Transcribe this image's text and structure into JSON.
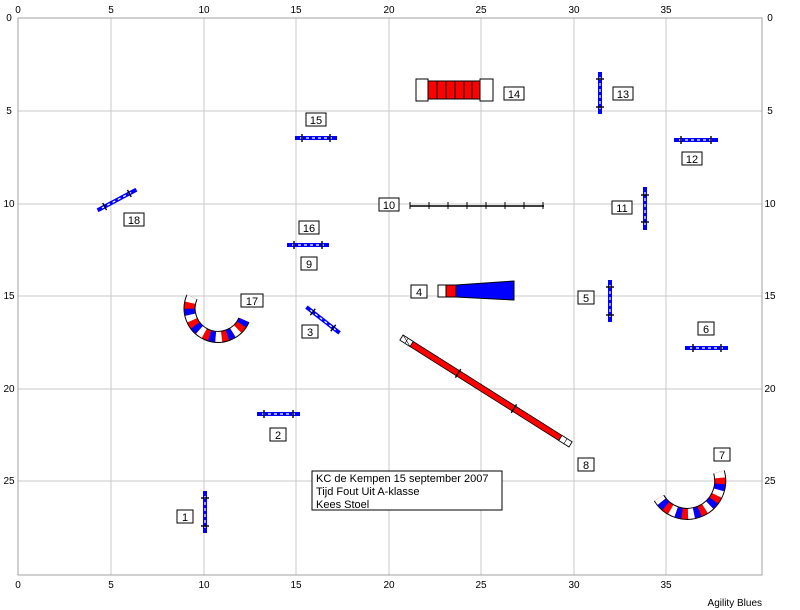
{
  "axis": {
    "x_ticks": [
      "0",
      "5",
      "10",
      "15",
      "20",
      "25",
      "30",
      "35"
    ],
    "y_ticks": [
      "0",
      "5",
      "10",
      "15",
      "20",
      "25"
    ]
  },
  "obstacles": [
    {
      "number": "1",
      "type": "jump"
    },
    {
      "number": "2",
      "type": "jump"
    },
    {
      "number": "3",
      "type": "jump"
    },
    {
      "number": "4",
      "type": "chute-tunnel"
    },
    {
      "number": "5",
      "type": "jump"
    },
    {
      "number": "6",
      "type": "jump"
    },
    {
      "number": "7",
      "type": "tunnel"
    },
    {
      "number": "8",
      "type": "dogwalk"
    },
    {
      "number": "9",
      "type": "jump"
    },
    {
      "number": "10",
      "type": "weave-poles"
    },
    {
      "number": "11",
      "type": "jump"
    },
    {
      "number": "12",
      "type": "jump"
    },
    {
      "number": "13",
      "type": "jump"
    },
    {
      "number": "14",
      "type": "tunnel"
    },
    {
      "number": "15",
      "type": "jump"
    },
    {
      "number": "16",
      "type": "jump"
    },
    {
      "number": "17",
      "type": "tunnel"
    },
    {
      "number": "18",
      "type": "jump"
    }
  ],
  "info_box": {
    "line1": "KC de Kempen 15 september 2007",
    "line2": "Tijd Fout Uit A-klasse",
    "line3": "Kees Stoel"
  },
  "credit": "Agility Blues",
  "colors": {
    "grid": "#c0c0c0",
    "red": "#ff0000",
    "blue": "#0000ff",
    "bar_red": "#cc0000"
  }
}
